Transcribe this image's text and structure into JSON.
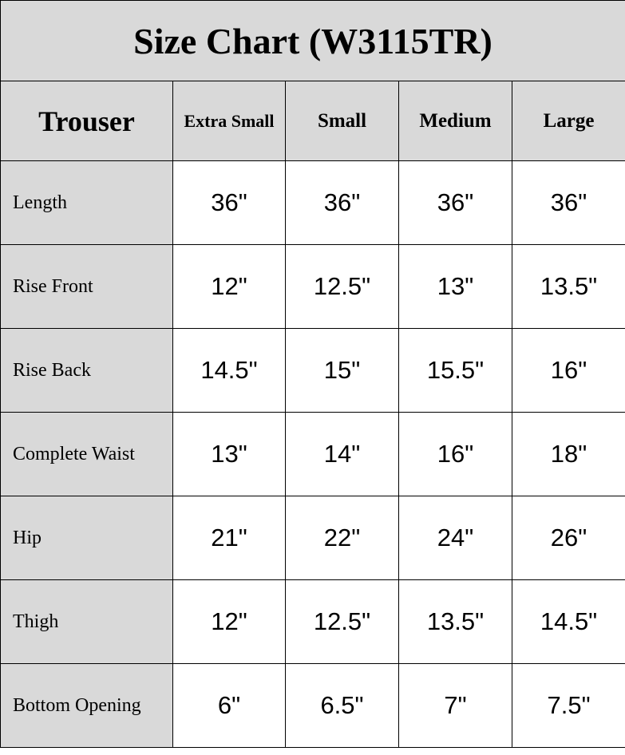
{
  "title": "Size Chart (W3115TR)",
  "colors": {
    "header_bg": "#d9d9d9",
    "cell_bg": "#ffffff",
    "border": "#000000"
  },
  "table": {
    "corner": "Trouser",
    "columns": [
      "Extra Small",
      "Small",
      "Medium",
      "Large"
    ],
    "rows": [
      {
        "label": "Length",
        "values": [
          "36\"",
          "36\"",
          "36\"",
          "36\""
        ]
      },
      {
        "label": "Rise Front",
        "values": [
          "12\"",
          "12.5\"",
          "13\"",
          "13.5\""
        ]
      },
      {
        "label": "Rise Back",
        "values": [
          "14.5\"",
          "15\"",
          "15.5\"",
          "16\""
        ]
      },
      {
        "label": "Complete Waist",
        "values": [
          "13\"",
          "14\"",
          "16\"",
          "18\""
        ]
      },
      {
        "label": "Hip",
        "values": [
          "21\"",
          "22\"",
          "24\"",
          "26\""
        ]
      },
      {
        "label": "Thigh",
        "values": [
          "12\"",
          "12.5\"",
          "13.5\"",
          "14.5\""
        ]
      },
      {
        "label": "Bottom Opening",
        "values": [
          "6\"",
          "6.5\"",
          "7\"",
          "7.5\""
        ]
      }
    ]
  }
}
